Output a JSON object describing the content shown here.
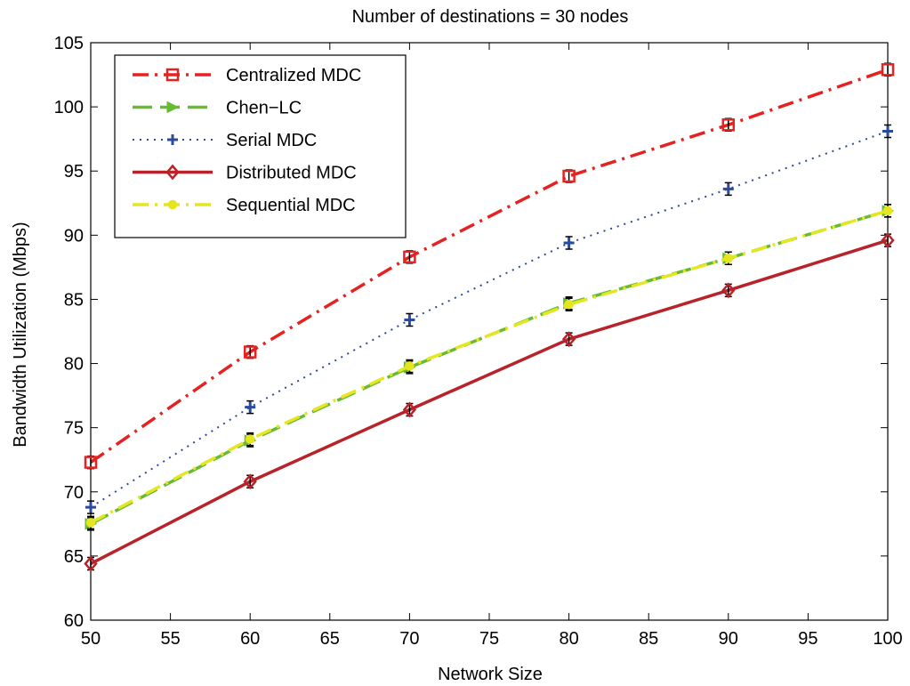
{
  "chart_data": {
    "type": "line",
    "title": "Number of destinations = 30 nodes",
    "xlabel": "Network Size",
    "ylabel": "Bandwidth Utilization (Mbps)",
    "xlim": [
      50,
      100
    ],
    "ylim": [
      60,
      105
    ],
    "xticks": [
      50,
      55,
      60,
      65,
      70,
      75,
      80,
      85,
      90,
      95,
      100
    ],
    "yticks": [
      60,
      65,
      70,
      75,
      80,
      85,
      90,
      95,
      100,
      105
    ],
    "grid": false,
    "legend_position": "top-left",
    "x": [
      50,
      60,
      70,
      80,
      90,
      100
    ],
    "series": [
      {
        "name": "Centralized MDC",
        "values": [
          72.3,
          80.9,
          88.3,
          94.6,
          98.6,
          102.9
        ],
        "color": "#e52222",
        "dash": "dash-dot",
        "marker": "square"
      },
      {
        "name": "Chen−LC",
        "values": [
          67.5,
          74.0,
          79.7,
          84.7,
          88.2,
          91.9
        ],
        "color": "#66bb33",
        "dash": "dashed",
        "marker": "triangle-right"
      },
      {
        "name": "Serial MDC",
        "values": [
          68.8,
          76.6,
          83.4,
          89.4,
          93.6,
          98.1
        ],
        "color": "#2a4a9a",
        "dash": "dotted",
        "marker": "plus"
      },
      {
        "name": "Distributed MDC",
        "values": [
          64.4,
          70.8,
          76.4,
          81.9,
          85.7,
          89.6
        ],
        "color": "#b8232a",
        "dash": "solid",
        "marker": "diamond"
      },
      {
        "name": "Sequential MDC",
        "values": [
          67.6,
          74.1,
          79.8,
          84.6,
          88.2,
          91.9
        ],
        "color": "#e6e620",
        "dash": "dash-dot",
        "marker": "circle"
      }
    ]
  }
}
